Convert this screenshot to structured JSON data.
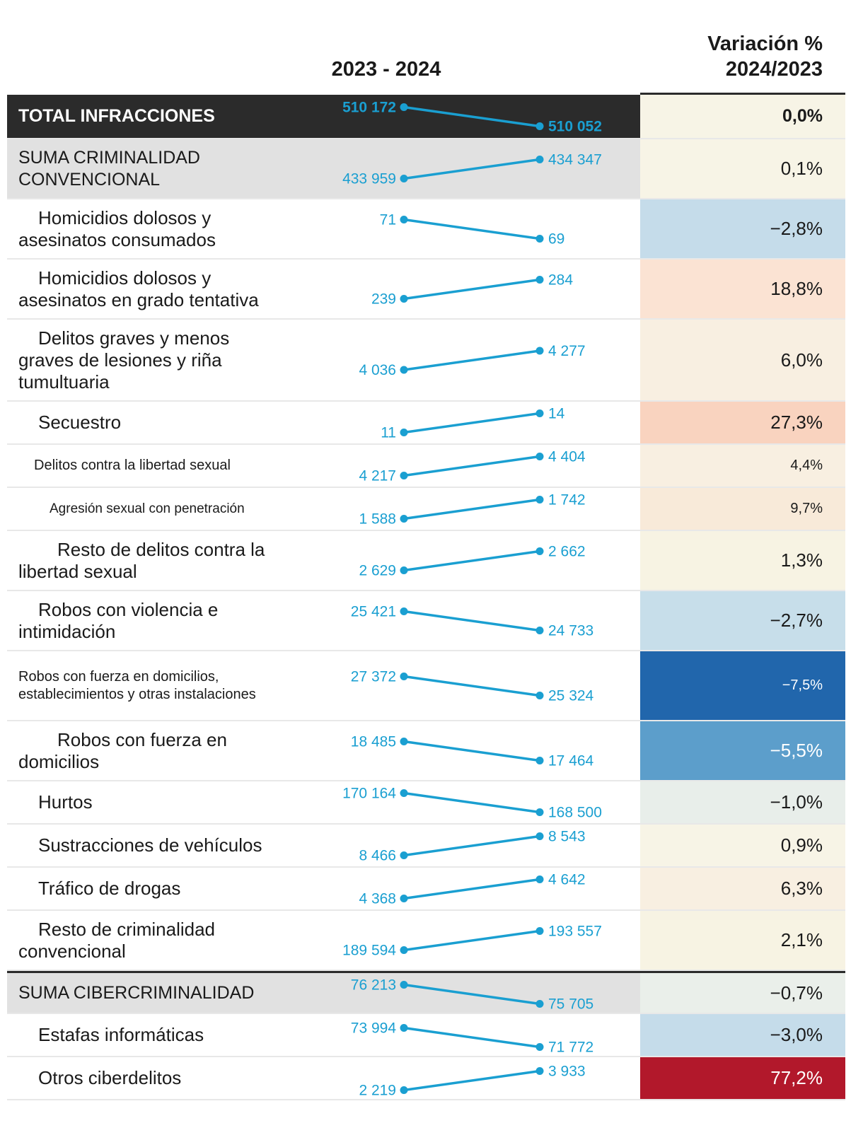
{
  "chart_data": {
    "type": "table",
    "title": "",
    "header_years": "2023 - 2024",
    "header_variation": [
      "Variación %",
      "2024/2023"
    ],
    "series_years": [
      "2023",
      "2024"
    ],
    "colors": {
      "line": "#1a9fd1",
      "total_bg": "#2b2b2b",
      "subtotal_bg": "#e1e1e1"
    },
    "rows": [
      {
        "label": "TOTAL INFRACCIONES",
        "v2023": 510172,
        "v2024": 510052,
        "v2023_label": "510 172",
        "v2024_label": "510 052",
        "pct": "0,0%",
        "pct_bg": "#f7f4e6",
        "pct_color": "#1a1a1a"
      },
      {
        "label": "SUMA CRIMINALIDAD CONVENCIONAL",
        "v2023": 433959,
        "v2024": 434347,
        "v2023_label": "433 959",
        "v2024_label": "434 347",
        "pct": "0,1%",
        "pct_bg": "#f7f4e6",
        "pct_color": "#1a1a1a"
      },
      {
        "label": "Homicidios dolosos y asesinatos consumados",
        "v2023": 71,
        "v2024": 69,
        "v2023_label": "71",
        "v2024_label": "69",
        "pct": "−2,8%",
        "pct_bg": "#c5dcea",
        "pct_color": "#1a1a1a"
      },
      {
        "label": "Homicidios dolosos y asesinatos en grado tentativa",
        "v2023": 239,
        "v2024": 284,
        "v2023_label": "239",
        "v2024_label": "284",
        "pct": "18,8%",
        "pct_bg": "#fbe3d3",
        "pct_color": "#1a1a1a"
      },
      {
        "label": "Delitos graves y menos graves de lesiones y riña tumultuaria",
        "v2023": 4036,
        "v2024": 4277,
        "v2023_label": "4 036",
        "v2024_label": "4 277",
        "pct": "6,0%",
        "pct_bg": "#f8efe1",
        "pct_color": "#1a1a1a"
      },
      {
        "label": "Secuestro",
        "v2023": 11,
        "v2024": 14,
        "v2023_label": "11",
        "v2024_label": "14",
        "pct": "27,3%",
        "pct_bg": "#f9d3bf",
        "pct_color": "#1a1a1a"
      },
      {
        "label": "Delitos contra la libertad sexual",
        "v2023": 4217,
        "v2024": 4404,
        "v2023_label": "4 217",
        "v2024_label": "4 404",
        "pct": "4,4%",
        "pct_bg": "#f8efe1",
        "pct_color": "#1a1a1a"
      },
      {
        "label": "Agresión sexual con penetración",
        "v2023": 1588,
        "v2024": 1742,
        "v2023_label": "1 588",
        "v2024_label": "1 742",
        "pct": "9,7%",
        "pct_bg": "#f8ead9",
        "pct_color": "#1a1a1a"
      },
      {
        "label": "Resto de delitos contra la libertad sexual",
        "v2023": 2629,
        "v2024": 2662,
        "v2023_label": "2 629",
        "v2024_label": "2 662",
        "pct": "1,3%",
        "pct_bg": "#f7f3e3",
        "pct_color": "#1a1a1a"
      },
      {
        "label": "Robos con violencia e intimidación",
        "v2023": 25421,
        "v2024": 24733,
        "v2023_label": "25 421",
        "v2024_label": "24 733",
        "pct": "−2,7%",
        "pct_bg": "#c7deea",
        "pct_color": "#1a1a1a"
      },
      {
        "label": "Robos con fuerza en domicilios, establecimientos y otras instalaciones",
        "v2023": 27372,
        "v2024": 25324,
        "v2023_label": "27 372",
        "v2024_label": "25 324",
        "pct": "−7,5%",
        "pct_bg": "#2166ac",
        "pct_color": "#ffffff"
      },
      {
        "label": "Robos con fuerza en domicilios",
        "v2023": 18485,
        "v2024": 17464,
        "v2023_label": "18 485",
        "v2024_label": "17 464",
        "pct": "−5,5%",
        "pct_bg": "#5c9ecb",
        "pct_color": "#ffffff"
      },
      {
        "label": "Hurtos",
        "v2023": 170164,
        "v2024": 168500,
        "v2023_label": "170 164",
        "v2024_label": "168 500",
        "pct": "−1,0%",
        "pct_bg": "#e8eeea",
        "pct_color": "#1a1a1a"
      },
      {
        "label": "Sustracciones de vehículos",
        "v2023": 8466,
        "v2024": 8543,
        "v2023_label": "8 466",
        "v2024_label": "8 543",
        "pct": "0,9%",
        "pct_bg": "#f7f4e6",
        "pct_color": "#1a1a1a"
      },
      {
        "label": "Tráfico de drogas",
        "v2023": 4368,
        "v2024": 4642,
        "v2023_label": "4 368",
        "v2024_label": "4 642",
        "pct": "6,3%",
        "pct_bg": "#f8efe1",
        "pct_color": "#1a1a1a"
      },
      {
        "label": "Resto de criminalidad convencional",
        "v2023": 189594,
        "v2024": 193557,
        "v2023_label": "189 594",
        "v2024_label": "193 557",
        "pct": "2,1%",
        "pct_bg": "#f7f3e3",
        "pct_color": "#1a1a1a"
      },
      {
        "label": "SUMA CIBERCRIMINALIDAD",
        "v2023": 76213,
        "v2024": 75705,
        "v2023_label": "76 213",
        "v2024_label": "75 705",
        "pct": "−0,7%",
        "pct_bg": "#eaefea",
        "pct_color": "#1a1a1a"
      },
      {
        "label": "Estafas informáticas",
        "v2023": 73994,
        "v2024": 71772,
        "v2023_label": "73 994",
        "v2024_label": "71 772",
        "pct": "−3,0%",
        "pct_bg": "#c5dcea",
        "pct_color": "#1a1a1a"
      },
      {
        "label": "Otros ciberdelitos",
        "v2023": 2219,
        "v2024": 3933,
        "v2023_label": "2 219",
        "v2024_label": "3 933",
        "pct": "77,2%",
        "pct_bg": "#b2182b",
        "pct_color": "#ffffff"
      }
    ]
  }
}
